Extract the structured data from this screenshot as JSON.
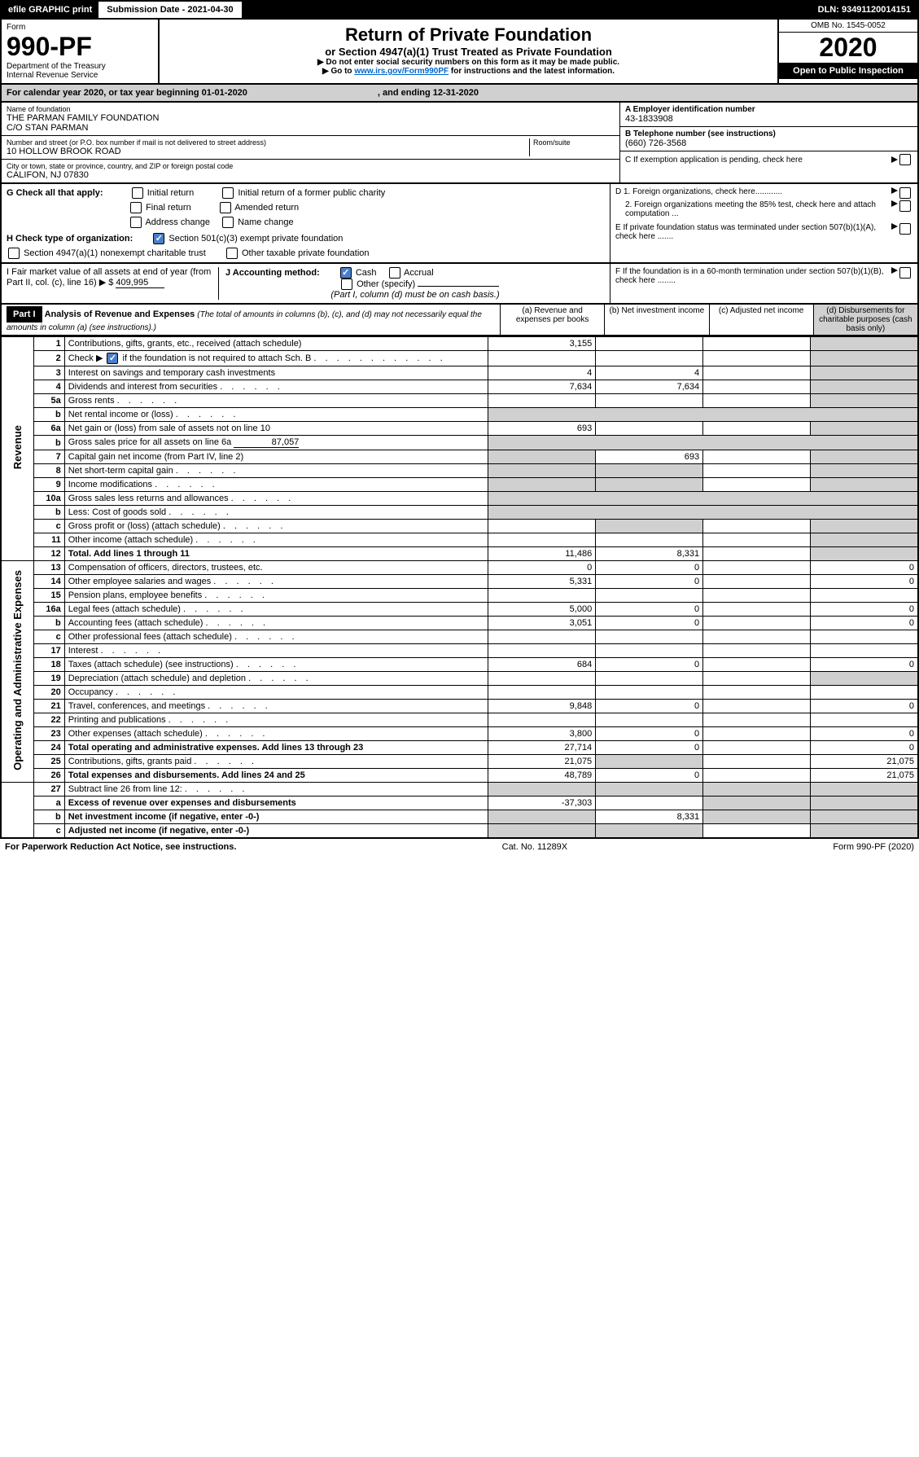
{
  "topbar": {
    "efile": "efile GRAPHIC print",
    "subdate_label": "Submission Date - ",
    "subdate": "2021-04-30",
    "dln_label": "DLN: ",
    "dln": "93491120014151"
  },
  "head": {
    "form_word": "Form",
    "form_no": "990-PF",
    "dept": "Department of the Treasury",
    "irs": "Internal Revenue Service",
    "title": "Return of Private Foundation",
    "subtitle": "or Section 4947(a)(1) Trust Treated as Private Foundation",
    "note1": "▶ Do not enter social security numbers on this form as it may be made public.",
    "note2_pre": "▶ Go to ",
    "note2_link": "www.irs.gov/Form990PF",
    "note2_post": " for instructions and the latest information.",
    "omb": "OMB No. 1545-0052",
    "year": "2020",
    "open": "Open to Public Inspection"
  },
  "calyear": {
    "text": "For calendar year 2020, or tax year beginning 01-01-2020",
    "ending": ", and ending 12-31-2020"
  },
  "entity": {
    "name_label": "Name of foundation",
    "name1": "THE PARMAN FAMILY FOUNDATION",
    "name2": "C/O STAN PARMAN",
    "addr_label": "Number and street (or P.O. box number if mail is not delivered to street address)",
    "addr": "10 HOLLOW BROOK ROAD",
    "room_label": "Room/suite",
    "city_label": "City or town, state or province, country, and ZIP or foreign postal code",
    "city": "CALIFON, NJ  07830",
    "a_label": "A Employer identification number",
    "a_val": "43-1833908",
    "b_label": "B Telephone number (see instructions)",
    "b_val": "(660) 726-3568",
    "c_label": "C If exemption application is pending, check here"
  },
  "g": {
    "label": "G Check all that apply:",
    "initial": "Initial return",
    "initial_former": "Initial return of a former public charity",
    "final": "Final return",
    "amended": "Amended return",
    "address": "Address change",
    "name": "Name change"
  },
  "h": {
    "label": "H Check type of organization:",
    "s501": "Section 501(c)(3) exempt private foundation",
    "s4947": "Section 4947(a)(1) nonexempt charitable trust",
    "other_tax": "Other taxable private foundation"
  },
  "i": {
    "label": "I Fair market value of all assets at end of year (from Part II, col. (c), line 16)",
    "arrow": "▶ $",
    "val": "409,995"
  },
  "j": {
    "label": "J Accounting method:",
    "cash": "Cash",
    "accrual": "Accrual",
    "other": "Other (specify)",
    "note": "(Part I, column (d) must be on cash basis.)"
  },
  "d": {
    "d1": "D 1. Foreign organizations, check here............",
    "d2": "2. Foreign organizations meeting the 85% test, check here and attach computation ..."
  },
  "e": {
    "label": "E  If private foundation status was terminated under section 507(b)(1)(A), check here ......."
  },
  "f": {
    "label": "F  If the foundation is in a 60-month termination under section 507(b)(1)(B), check here ........"
  },
  "part1": {
    "title": "Part I",
    "desc_title": "Analysis of Revenue and Expenses",
    "desc_note": "(The total of amounts in columns (b), (c), and (d) may not necessarily equal the amounts in column (a) (see instructions).)",
    "col_a": "(a)   Revenue and expenses per books",
    "col_b": "(b)  Net investment income",
    "col_c": "(c)  Adjusted net income",
    "col_d": "(d)  Disbursements for charitable purposes (cash basis only)"
  },
  "rot": {
    "rev": "Revenue",
    "exp": "Operating and Administrative Expenses"
  },
  "rows": [
    {
      "n": "1",
      "d": "Contributions, gifts, grants, etc., received (attach schedule)",
      "a": "3,155"
    },
    {
      "n": "2",
      "d": "Check ▶",
      "d2": " if the foundation is not required to attach Sch. B",
      "check": true
    },
    {
      "n": "3",
      "d": "Interest on savings and temporary cash investments",
      "a": "4",
      "b": "4"
    },
    {
      "n": "4",
      "d": "Dividends and interest from securities",
      "a": "7,634",
      "b": "7,634"
    },
    {
      "n": "5a",
      "d": "Gross rents"
    },
    {
      "n": "b",
      "d": "Net rental income or (loss)",
      "self_grey": true
    },
    {
      "n": "6a",
      "d": "Net gain or (loss) from sale of assets not on line 10",
      "a": "693"
    },
    {
      "n": "b",
      "d": "Gross sales price for all assets on line 6a",
      "inline_val": "87,057",
      "self_grey": true
    },
    {
      "n": "7",
      "d": "Capital gain net income (from Part IV, line 2)",
      "b": "693",
      "a_grey": true
    },
    {
      "n": "8",
      "d": "Net short-term capital gain",
      "a_grey": true,
      "b_grey": true
    },
    {
      "n": "9",
      "d": "Income modifications",
      "a_grey": true,
      "b_grey": true
    },
    {
      "n": "10a",
      "d": "Gross sales less returns and allowances",
      "self_grey": true
    },
    {
      "n": "b",
      "d": "Less: Cost of goods sold",
      "self_grey": true
    },
    {
      "n": "c",
      "d": "Gross profit or (loss) (attach schedule)",
      "b_grey": true
    },
    {
      "n": "11",
      "d": "Other income (attach schedule)"
    },
    {
      "n": "12",
      "d": "Total. Add lines 1 through 11",
      "bold": true,
      "a": "11,486",
      "b": "8,331"
    }
  ],
  "exp_rows": [
    {
      "n": "13",
      "d": "Compensation of officers, directors, trustees, etc.",
      "a": "0",
      "b": "0",
      "dd": "0"
    },
    {
      "n": "14",
      "d": "Other employee salaries and wages",
      "a": "5,331",
      "b": "0",
      "dd": "0"
    },
    {
      "n": "15",
      "d": "Pension plans, employee benefits"
    },
    {
      "n": "16a",
      "d": "Legal fees (attach schedule)",
      "a": "5,000",
      "b": "0",
      "dd": "0"
    },
    {
      "n": "b",
      "d": "Accounting fees (attach schedule)",
      "a": "3,051",
      "b": "0",
      "dd": "0"
    },
    {
      "n": "c",
      "d": "Other professional fees (attach schedule)"
    },
    {
      "n": "17",
      "d": "Interest"
    },
    {
      "n": "18",
      "d": "Taxes (attach schedule) (see instructions)",
      "a": "684",
      "b": "0",
      "dd": "0"
    },
    {
      "n": "19",
      "d": "Depreciation (attach schedule) and depletion",
      "d_grey": true
    },
    {
      "n": "20",
      "d": "Occupancy"
    },
    {
      "n": "21",
      "d": "Travel, conferences, and meetings",
      "a": "9,848",
      "b": "0",
      "dd": "0"
    },
    {
      "n": "22",
      "d": "Printing and publications"
    },
    {
      "n": "23",
      "d": "Other expenses (attach schedule)",
      "a": "3,800",
      "b": "0",
      "dd": "0"
    },
    {
      "n": "24",
      "d": "Total operating and administrative expenses. Add lines 13 through 23",
      "bold": true,
      "a": "27,714",
      "b": "0",
      "dd": "0"
    },
    {
      "n": "25",
      "d": "Contributions, gifts, grants paid",
      "a": "21,075",
      "b_grey": true,
      "dd": "21,075"
    },
    {
      "n": "26",
      "d": "Total expenses and disbursements. Add lines 24 and 25",
      "bold": true,
      "a": "48,789",
      "b": "0",
      "dd": "21,075"
    }
  ],
  "tail": [
    {
      "n": "27",
      "d": "Subtract line 26 from line 12:",
      "all_grey": true
    },
    {
      "n": "a",
      "d": "Excess of revenue over expenses and disbursements",
      "bold": true,
      "a": "-37,303",
      "rest_grey": true
    },
    {
      "n": "b",
      "d": "Net investment income (if negative, enter -0-)",
      "bold": true,
      "a_grey": true,
      "b": "8,331",
      "rest_grey": true
    },
    {
      "n": "c",
      "d": "Adjusted net income (if negative, enter -0-)",
      "bold": true,
      "a_grey": true,
      "b_grey": true,
      "d_grey": true
    }
  ],
  "footer": {
    "left": "For Paperwork Reduction Act Notice, see instructions.",
    "mid": "Cat. No. 11289X",
    "right": "Form 990-PF (2020)"
  }
}
